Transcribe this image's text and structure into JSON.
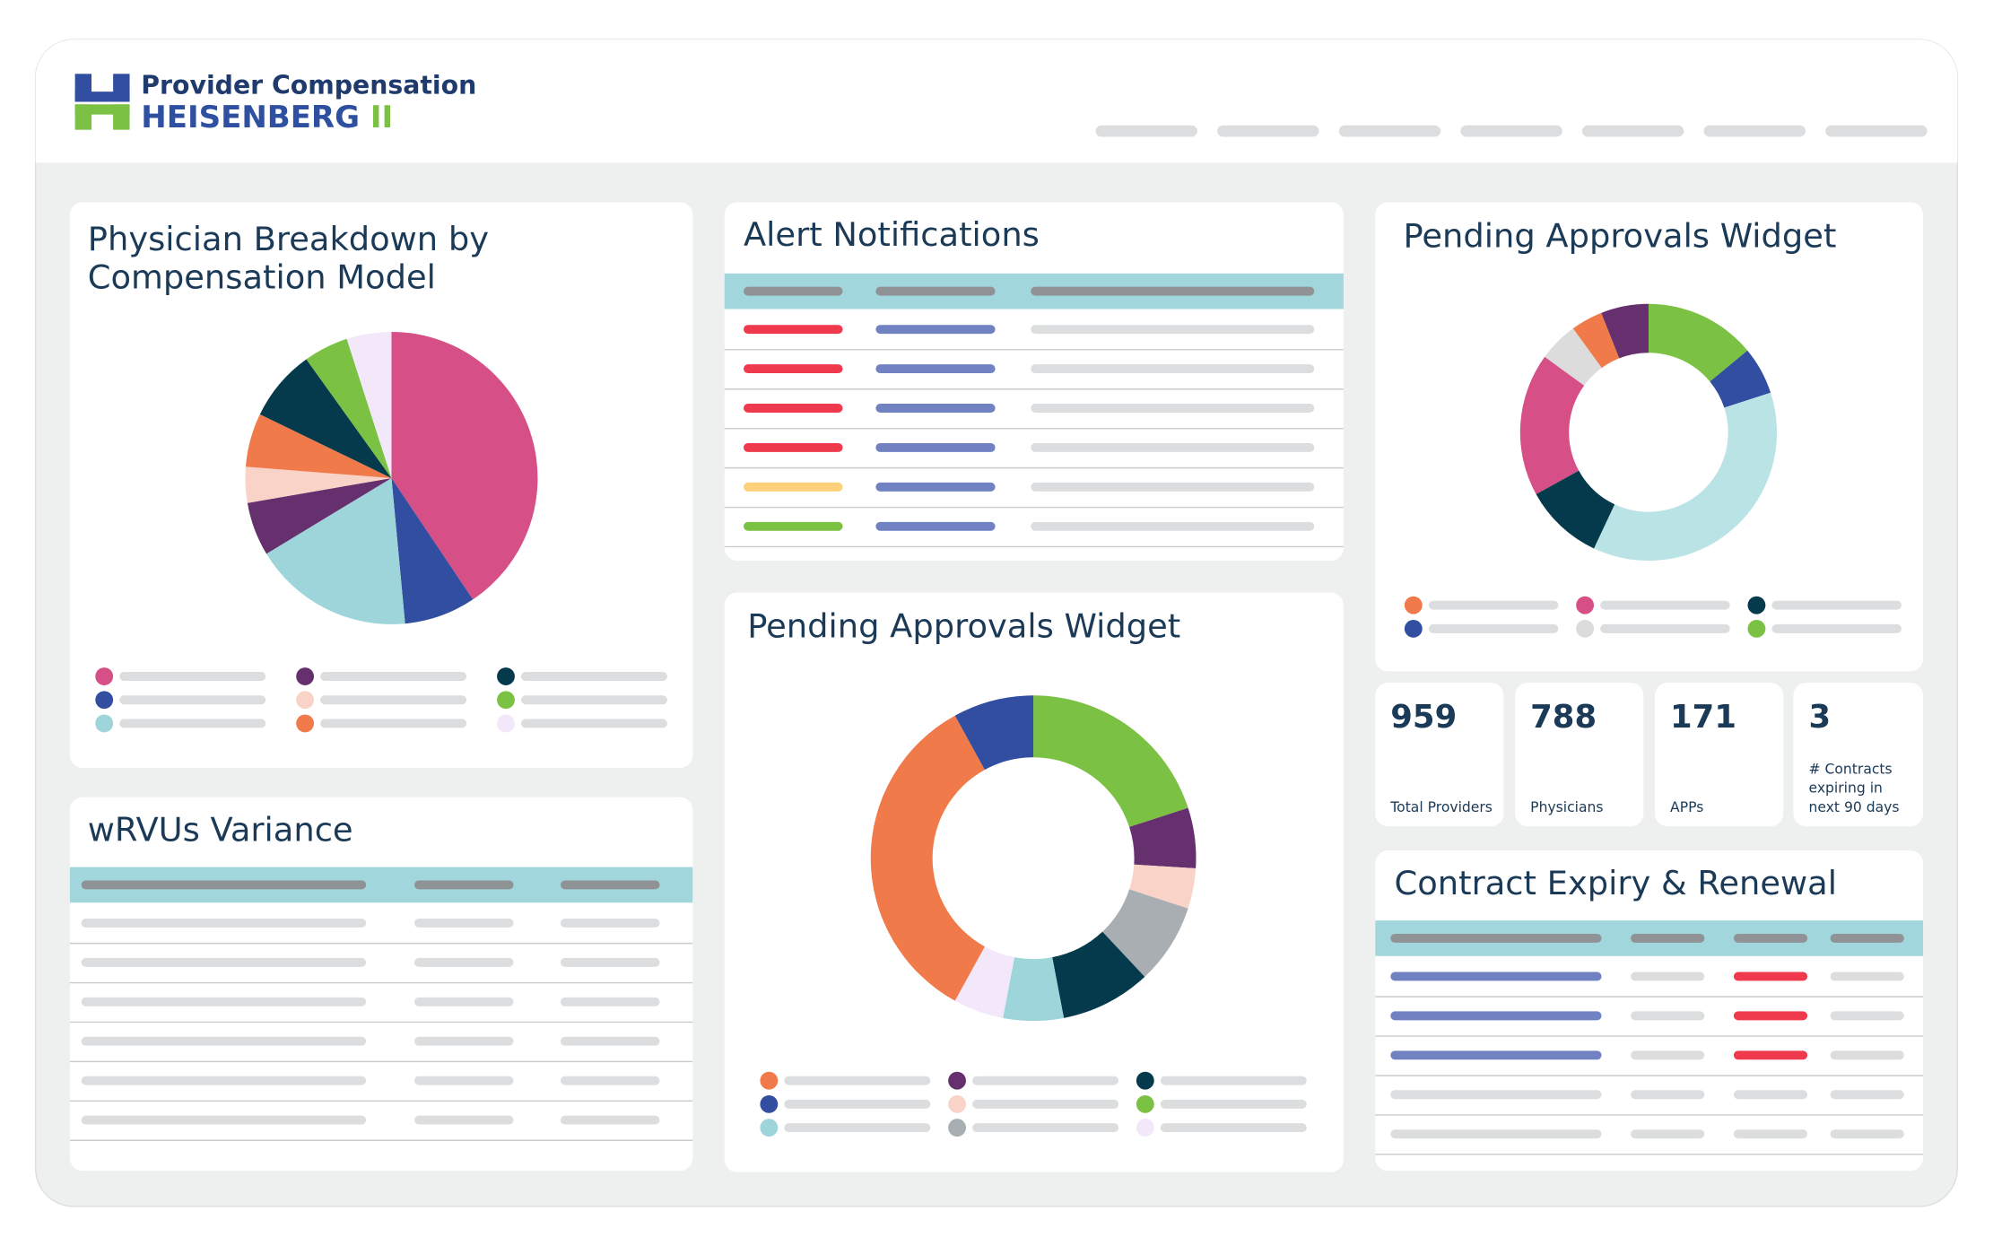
{
  "header": {
    "brand_top": "Provider Compensation",
    "brand_name": "HEISENBERG",
    "brand_suffix": "II"
  },
  "physician_breakdown": {
    "title": "Physician Breakdown by Compensation Model",
    "chart": {
      "type": "pie",
      "values": [
        41,
        8,
        18,
        6,
        4,
        6,
        8,
        5,
        5
      ],
      "colors": [
        "#d64f87",
        "#314ea0",
        "#9dd5db",
        "#66306e",
        "#f9d3c7",
        "#f07a4a",
        "#053a4c",
        "#7bc143",
        "#f3e8fa"
      ]
    }
  },
  "wrvus_variance": {
    "title": "wRVUs Variance"
  },
  "alert_notifications": {
    "title": "Alert Notifications"
  },
  "pending_approvals_main": {
    "title": "Pending Approvals Widget",
    "chart": {
      "type": "donut",
      "values": [
        20,
        6,
        4,
        8,
        9,
        6,
        5,
        34,
        8
      ],
      "colors": [
        "#7bc143",
        "#66306e",
        "#f9d3c7",
        "#a8aeb1",
        "#053a4c",
        "#9dd5db",
        "#f3e8fa",
        "#f07a4a",
        "#314ea0"
      ]
    }
  },
  "pending_approvals_side": {
    "title": "Pending Approvals Widget",
    "chart": {
      "type": "donut",
      "values": [
        14,
        6,
        37,
        10,
        18,
        5,
        4,
        6
      ],
      "colors": [
        "#7bc143",
        "#314ea0",
        "#b9e3e5",
        "#053a4c",
        "#d64f87",
        "#dcdcdc",
        "#f07a4a",
        "#66306e"
      ]
    }
  },
  "stats": [
    {
      "value": 959,
      "label": "Total Providers"
    },
    {
      "value": 788,
      "label": "Physicians"
    },
    {
      "value": 171,
      "label": "APPs"
    },
    {
      "value": 3,
      "label": "# Contracts expiring in next 90 days"
    }
  ],
  "contract_expiry": {
    "title": "Contract Expiry & Renewal"
  }
}
